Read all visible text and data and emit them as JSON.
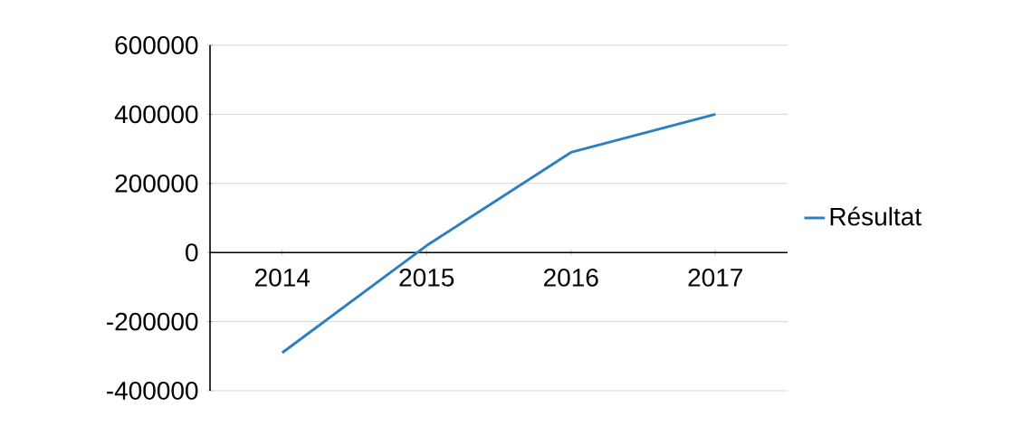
{
  "chart_data": {
    "type": "line",
    "categories": [
      "2014",
      "2015",
      "2016",
      "2017"
    ],
    "series": [
      {
        "name": "Résultat",
        "color": "#2e7fc0",
        "values": [
          -290000,
          20000,
          290000,
          400000
        ]
      }
    ],
    "ylim": [
      -400000,
      600000
    ],
    "yticks": [
      -400000,
      -200000,
      0,
      200000,
      400000,
      600000
    ],
    "grid": "y",
    "legend": "right"
  }
}
